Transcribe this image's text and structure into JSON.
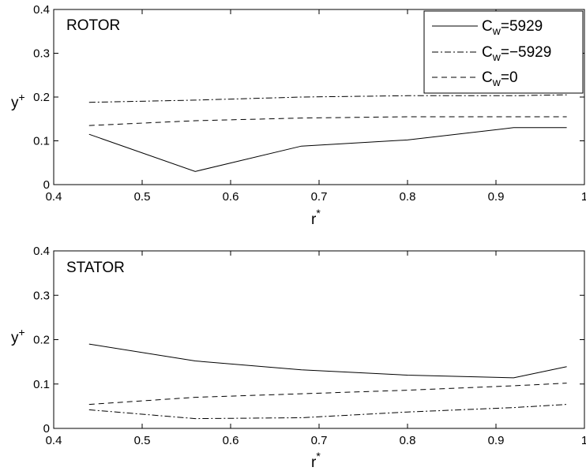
{
  "chart_data": [
    {
      "type": "line",
      "panel_label": "ROTOR",
      "xlabel_base": "r",
      "xlabel_sup": "*",
      "ylabel_base": "y",
      "ylabel_sup": "+",
      "xlim": [
        0.4,
        1.0
      ],
      "ylim": [
        0,
        0.4
      ],
      "xticks": [
        "0.4",
        "0.5",
        "0.6",
        "0.7",
        "0.8",
        "0.9",
        "1"
      ],
      "yticks": [
        "0",
        "0.1",
        "0.2",
        "0.3",
        "0.4"
      ],
      "grid": false,
      "legend": {
        "placement": "top-right",
        "entries": [
          {
            "base": "C",
            "sub": "w",
            "suffix": "=5929",
            "dash": "solid"
          },
          {
            "base": "C",
            "sub": "w",
            "suffix": "=−5929",
            "dash": "dashdot"
          },
          {
            "base": "C",
            "sub": "w",
            "suffix": "=0",
            "dash": "dashed"
          }
        ]
      },
      "x": [
        0.44,
        0.56,
        0.68,
        0.8,
        0.92,
        0.98
      ],
      "series": [
        {
          "name": "Cw=5929",
          "dash": "solid",
          "values": [
            0.115,
            0.03,
            0.088,
            0.102,
            0.13,
            0.13
          ]
        },
        {
          "name": "Cw=-5929",
          "dash": "dashdot",
          "values": [
            0.188,
            0.193,
            0.2,
            0.203,
            0.203,
            0.205
          ]
        },
        {
          "name": "Cw=0",
          "dash": "dashed",
          "values": [
            0.135,
            0.146,
            0.152,
            0.155,
            0.155,
            0.155
          ]
        }
      ]
    },
    {
      "type": "line",
      "panel_label": "STATOR",
      "xlabel_base": "r",
      "xlabel_sup": "*",
      "ylabel_base": "y",
      "ylabel_sup": "+",
      "xlim": [
        0.4,
        1.0
      ],
      "ylim": [
        0,
        0.4
      ],
      "xticks": [
        "0.4",
        "0.5",
        "0.6",
        "0.7",
        "0.8",
        "0.9",
        "1"
      ],
      "yticks": [
        "0",
        "0.1",
        "0.2",
        "0.3",
        "0.4"
      ],
      "grid": false,
      "x": [
        0.44,
        0.56,
        0.68,
        0.8,
        0.92,
        0.98
      ],
      "series": [
        {
          "name": "Cw=5929",
          "dash": "solid",
          "values": [
            0.19,
            0.152,
            0.132,
            0.12,
            0.114,
            0.139
          ]
        },
        {
          "name": "Cw=-5929",
          "dash": "dashdot",
          "values": [
            0.042,
            0.022,
            0.024,
            0.037,
            0.047,
            0.054
          ]
        },
        {
          "name": "Cw=0",
          "dash": "dashed",
          "values": [
            0.054,
            0.07,
            0.078,
            0.086,
            0.096,
            0.102
          ]
        }
      ]
    }
  ]
}
